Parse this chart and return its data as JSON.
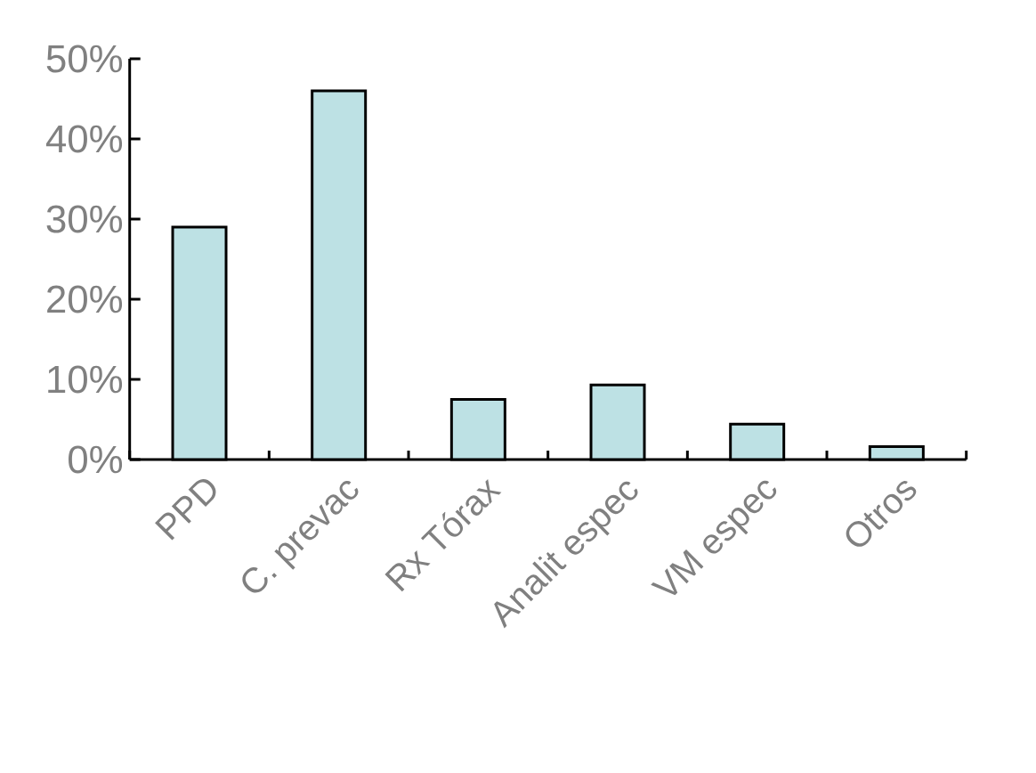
{
  "chart_data": {
    "type": "bar",
    "categories": [
      "PPD",
      "C. prevac",
      "Rx Tórax",
      "Analit espec",
      "VM espec",
      "Otros"
    ],
    "values": [
      29,
      46,
      7.5,
      9.3,
      4.4,
      1.6
    ],
    "color": "#bde1e4",
    "ylim": [
      0,
      50
    ],
    "yticks": [
      {
        "value": 0,
        "label": "0%"
      },
      {
        "value": 10,
        "label": "10%"
      },
      {
        "value": 20,
        "label": "20%"
      },
      {
        "value": 30,
        "label": "30%"
      },
      {
        "value": 40,
        "label": "40%"
      },
      {
        "value": 50,
        "label": "50%"
      }
    ],
    "grid": false
  }
}
